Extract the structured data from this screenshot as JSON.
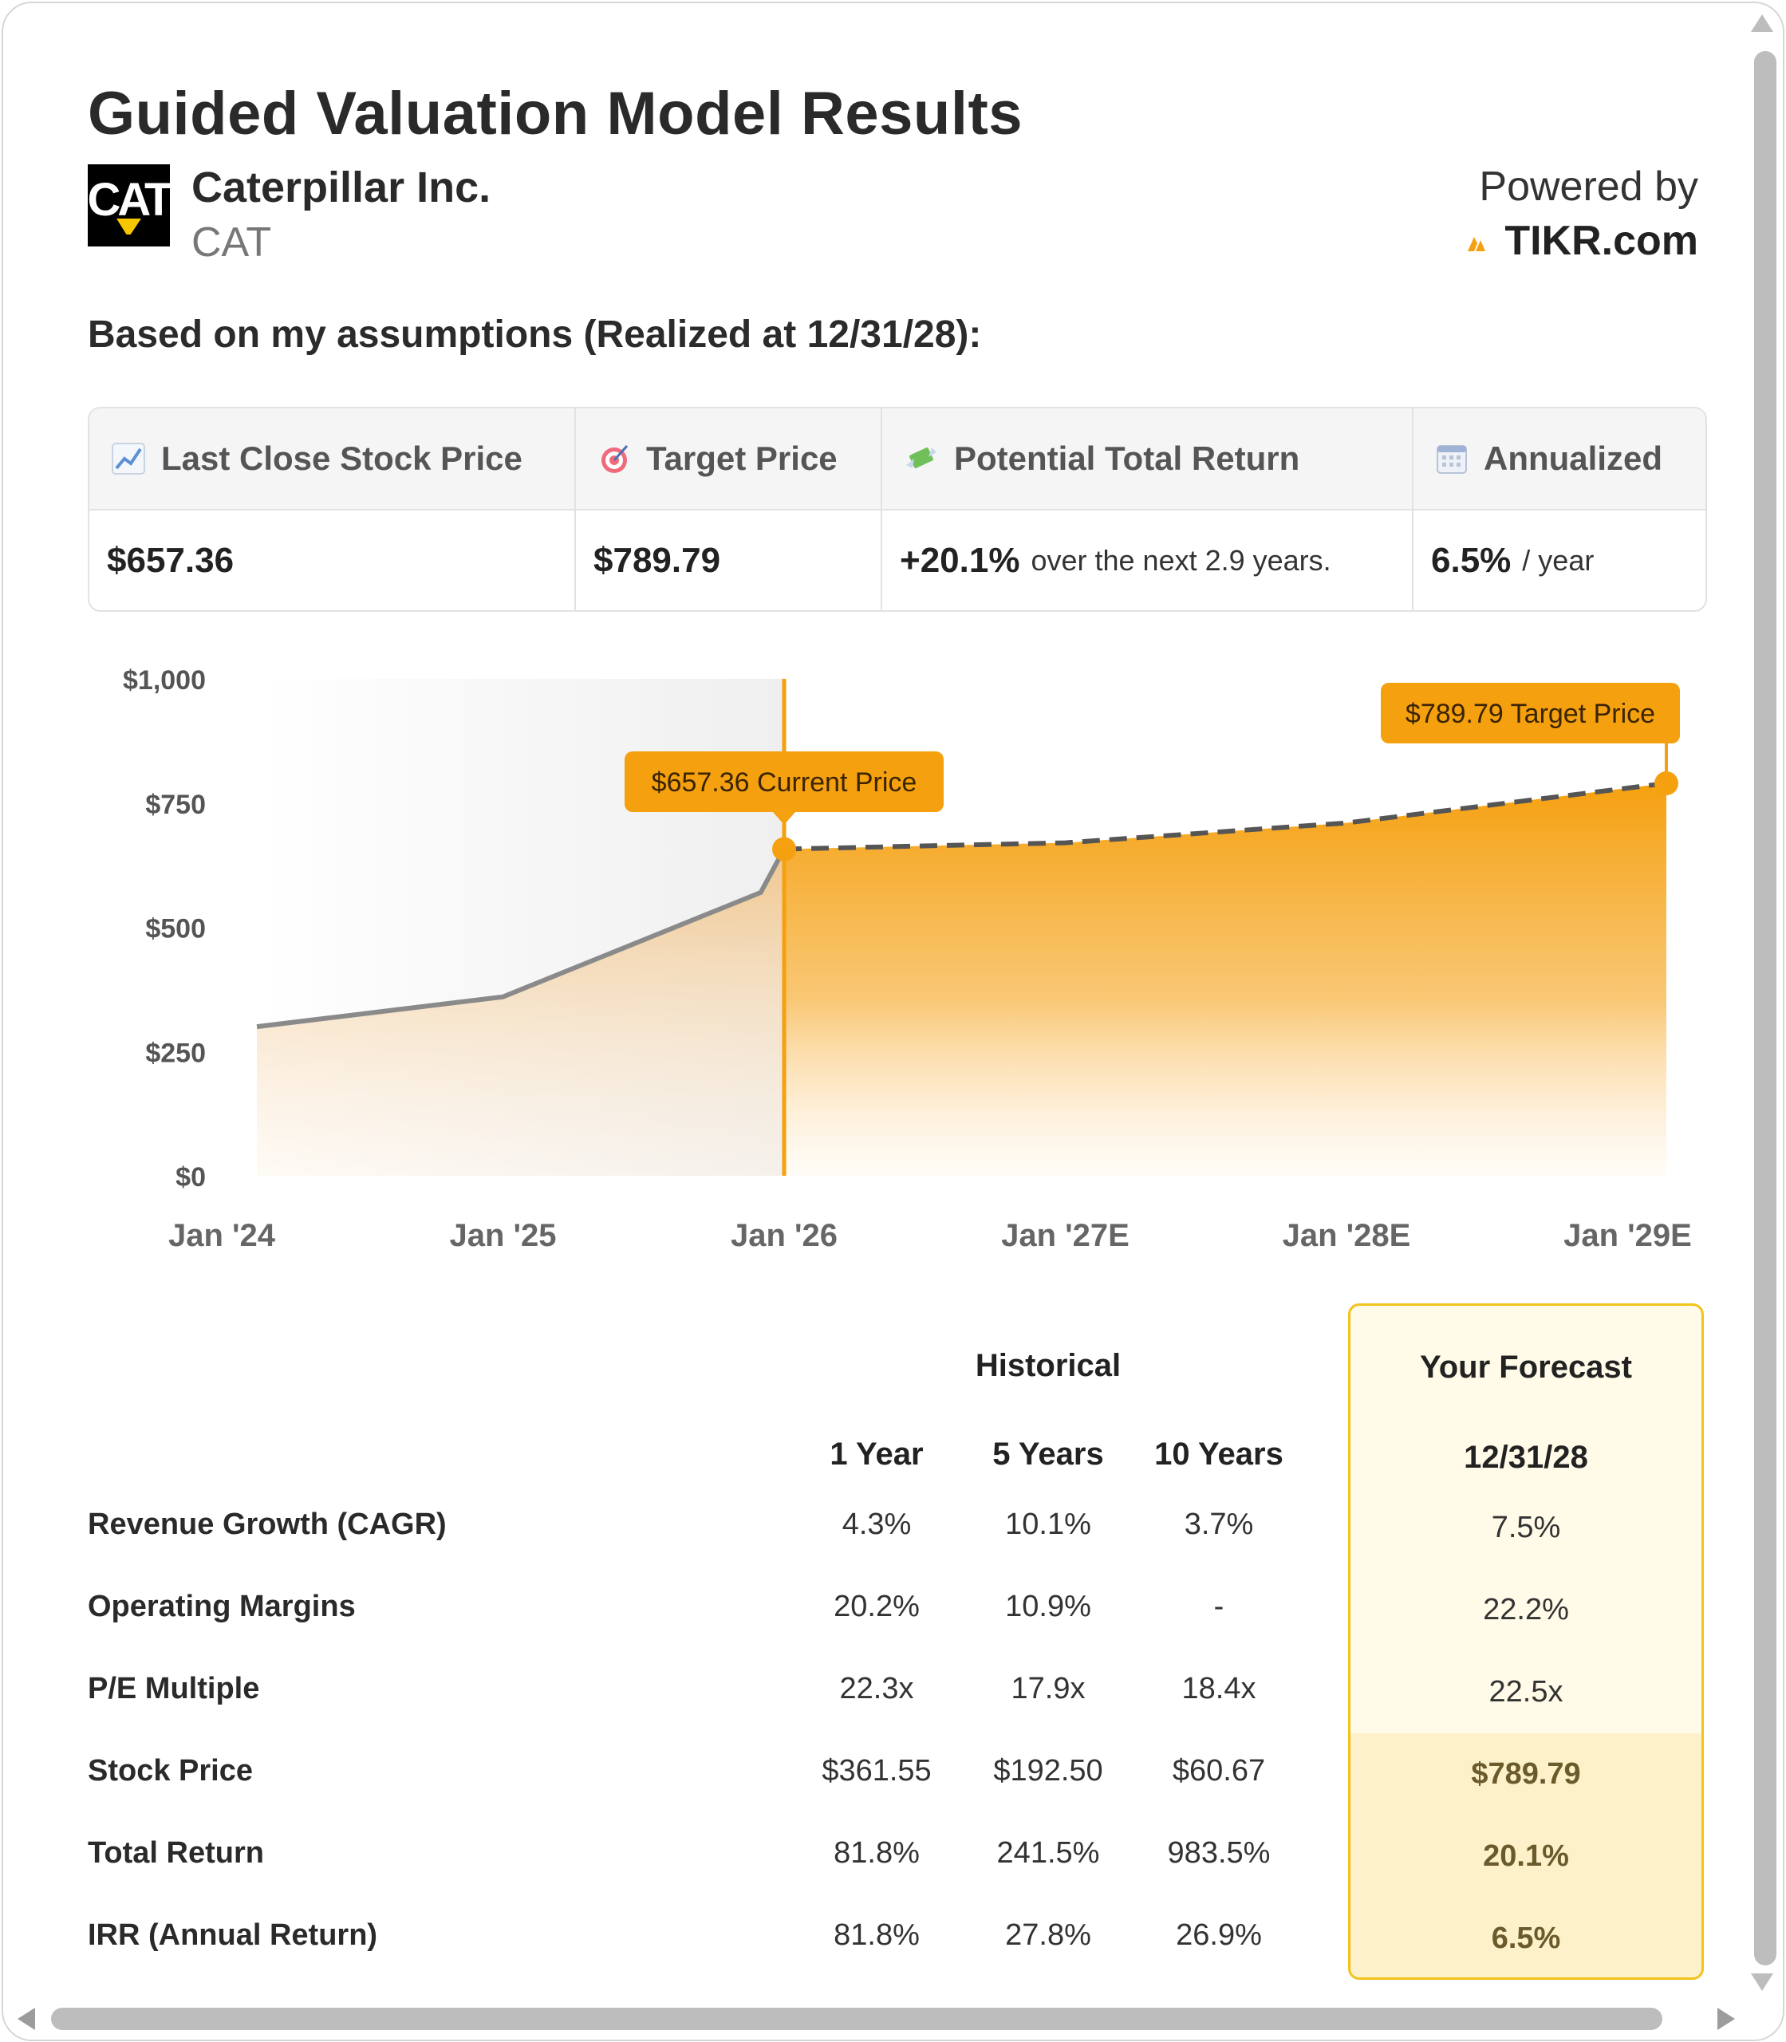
{
  "header": {
    "title": "Guided Valuation Model Results",
    "company_name": "Caterpillar Inc.",
    "ticker": "CAT",
    "powered_by": "Powered by",
    "provider": "TIKR.com"
  },
  "assumptions_heading": "Based on my assumptions (Realized at 12/31/28):",
  "summary": {
    "last_close": {
      "label": "Last Close Stock Price",
      "value": "$657.36",
      "icon": "chart-increasing-icon"
    },
    "target": {
      "label": "Target Price",
      "value": "$789.79",
      "icon": "target-icon"
    },
    "total_return": {
      "label": "Potential Total Return",
      "value": "+20.1%",
      "suffix": "over the next 2.9 years.",
      "icon": "money-wings-icon"
    },
    "annualized": {
      "label": "Annualized",
      "value": "6.5%",
      "suffix": "/ year",
      "icon": "calendar-icon"
    }
  },
  "chart_data": {
    "type": "area",
    "x_ticks": [
      "Jan '24",
      "Jan '25",
      "Jan '26",
      "Jan '27E",
      "Jan '28E",
      "Jan '29E"
    ],
    "y_ticks": [
      "$1,000",
      "$750",
      "$500",
      "$250",
      "$0"
    ],
    "ylim": [
      0,
      1000
    ],
    "series": [
      {
        "points": [
          [
            "2024-01",
            300
          ],
          [
            "2025-01",
            360
          ],
          [
            "2025-12",
            570
          ],
          [
            "2026-01",
            657.36
          ]
        ]
      },
      {
        "points": [
          [
            "2026-01",
            657.36
          ],
          [
            "2027-01",
            670
          ],
          [
            "2028-01",
            710
          ],
          [
            "2028-12",
            789.79
          ]
        ]
      }
    ],
    "annotations": [
      {
        "label": "$657.36 Current Price",
        "x": "2026-01",
        "y": 657.36
      },
      {
        "label": "$789.79 Target Price",
        "x": "2028-12",
        "y": 789.79
      }
    ],
    "colors": {
      "accent": "#f5a00f",
      "historical_line": "#8a8a8a",
      "forecast_line": "#555555"
    }
  },
  "metrics": {
    "historical_heading": "Historical",
    "forecast_heading": "Your Forecast",
    "columns": [
      "1 Year",
      "5 Years",
      "10 Years"
    ],
    "forecast_column": "12/31/28",
    "rows": [
      {
        "label": "Revenue Growth (CAGR)",
        "values": [
          "4.3%",
          "10.1%",
          "3.7%"
        ],
        "forecast": "7.5%"
      },
      {
        "label": "Operating Margins",
        "values": [
          "20.2%",
          "10.9%",
          "-"
        ],
        "forecast": "22.2%"
      },
      {
        "label": "P/E Multiple",
        "values": [
          "22.3x",
          "17.9x",
          "18.4x"
        ],
        "forecast": "22.5x"
      },
      {
        "label": "Stock Price",
        "values": [
          "$361.55",
          "$192.50",
          "$60.67"
        ],
        "forecast": "$789.79"
      },
      {
        "label": "Total Return",
        "values": [
          "81.8%",
          "241.5%",
          "983.5%"
        ],
        "forecast": "20.1%"
      },
      {
        "label": "IRR (Annual Return)",
        "values": [
          "81.8%",
          "27.8%",
          "26.9%"
        ],
        "forecast": "6.5%"
      }
    ]
  }
}
